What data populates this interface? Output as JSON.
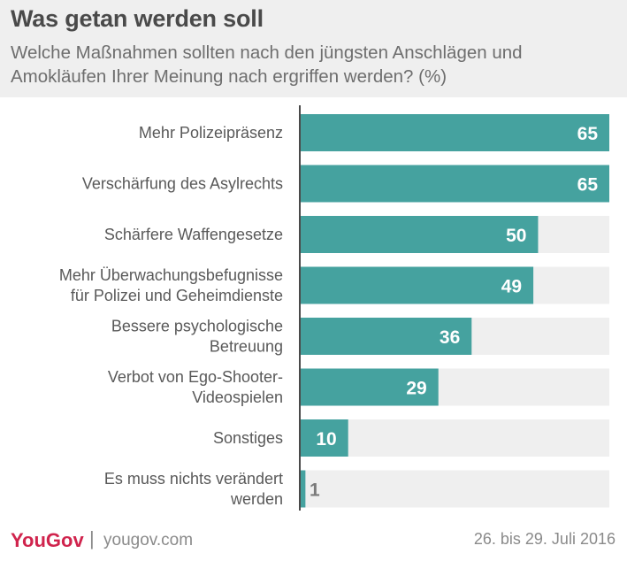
{
  "header": {
    "title": "Was getan werden soll",
    "subtitle": "Welche Maßnahmen sollten nach den jüngsten Anschlägen und Amokläufen Ihrer Meinung nach ergriffen werden? (%)"
  },
  "chart_data": {
    "type": "bar",
    "orientation": "horizontal",
    "title": "Was getan werden soll",
    "subtitle": "Welche Maßnahmen sollten nach den jüngsten Anschlägen und Amokläufen Ihrer Meinung nach ergriffen werden? (%)",
    "categories": [
      [
        "Mehr Polizeipräsenz"
      ],
      [
        "Verschärfung des Asylrechts"
      ],
      [
        "Schärfere Waffengesetze"
      ],
      [
        "Mehr Überwachungsbefugnisse",
        "für Polizei und Geheimdienste"
      ],
      [
        "Bessere psychologische",
        "Betreuung"
      ],
      [
        "Verbot von Ego-Shooter-",
        "Videospielen"
      ],
      [
        "Sonstiges"
      ],
      [
        "Es muss nichts verändert",
        "werden"
      ]
    ],
    "values": [
      65,
      65,
      50,
      49,
      36,
      29,
      10,
      1
    ],
    "xlim": [
      0,
      65
    ],
    "colors": {
      "bar": "#45a29f",
      "track": "#efefef",
      "label_inside": "#ffffff",
      "label_outside": "#7a7a7a",
      "axis": "#4a4a4a"
    }
  },
  "footer": {
    "brand": "YouGov",
    "separator": "|",
    "url": "yougov.com",
    "date": "26. bis 29. Juli 2016"
  }
}
